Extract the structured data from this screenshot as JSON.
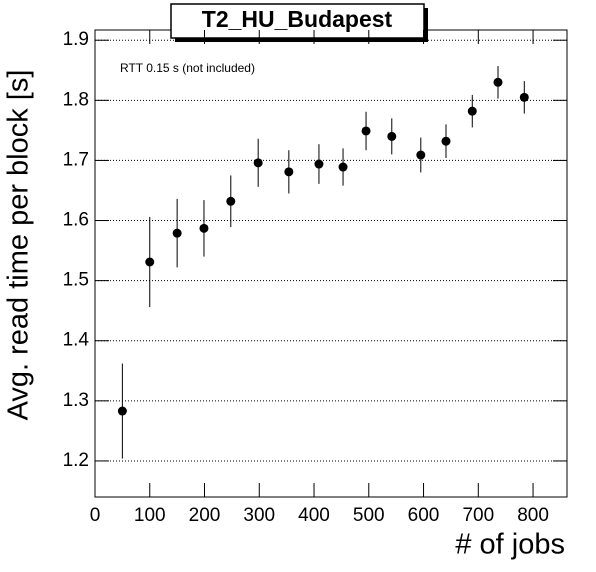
{
  "chart_data": {
    "type": "scatter",
    "title": "T2_HU_Budapest",
    "annotation": "RTT 0.15 s (not included)",
    "x_label": "# of jobs",
    "y_label": "Avg. read time per block [s]",
    "x": [
      50,
      100,
      150,
      199,
      248,
      298,
      354,
      409,
      453,
      495,
      542,
      595,
      641,
      689,
      736,
      784
    ],
    "values": [
      1.283,
      1.531,
      1.579,
      1.587,
      1.632,
      1.696,
      1.681,
      1.694,
      1.689,
      1.749,
      1.74,
      1.709,
      1.732,
      1.782,
      1.83,
      1.805
    ],
    "errors": [
      0.079,
      0.075,
      0.057,
      0.047,
      0.043,
      0.04,
      0.036,
      0.033,
      0.031,
      0.032,
      0.03,
      0.029,
      0.028,
      0.027,
      0.027,
      0.027
    ],
    "color": "#000000",
    "xlim": [
      0,
      862
    ],
    "xticks": [
      0,
      100,
      200,
      300,
      400,
      500,
      600,
      700,
      800
    ],
    "ylim": [
      1.14,
      1.917
    ],
    "yticks": [
      1.2,
      1.3,
      1.4,
      1.5,
      1.6,
      1.7,
      1.8,
      1.9
    ],
    "grid": true
  }
}
